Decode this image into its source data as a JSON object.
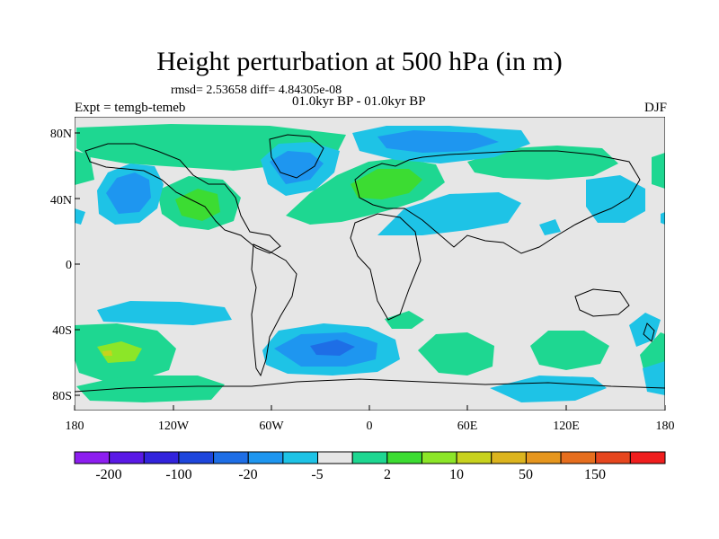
{
  "title": "Height perturbation at 500 hPa (in m)",
  "stats": "rmsd= 2.53658 diff= 4.84305e-08",
  "period": "01.0kyr BP - 01.0kyr BP",
  "experiment": "Expt = temgb-temeb",
  "season": "DJF",
  "axes": {
    "lat_labels": [
      "80N",
      "40N",
      "0",
      "40S",
      "80S"
    ],
    "lon_labels": [
      "180",
      "120W",
      "60W",
      "0",
      "60E",
      "120E",
      "180"
    ]
  },
  "colorbar": {
    "colors": [
      "#8d1ef0",
      "#5a19e6",
      "#3223dc",
      "#1e46dc",
      "#1e6ee6",
      "#1e96f0",
      "#1ec3e6",
      "#e6e6e6",
      "#1ed791",
      "#3cdc32",
      "#8ce628",
      "#c8d21e",
      "#dcb41e",
      "#e6961e",
      "#e66e1e",
      "#e6461e",
      "#f01e1e"
    ],
    "labels": [
      "-200",
      "-100",
      "-20",
      "-5",
      "2",
      "10",
      "50",
      "150"
    ]
  },
  "field_colors": {
    "background": "#e6e6e6",
    "neg1": "#1ec3e6",
    "neg2": "#1e96f0",
    "neg3": "#1e6ee6",
    "pos1": "#1ed791",
    "pos2": "#3cdc32",
    "pos3": "#8ce628",
    "pos4": "#c8d21e"
  }
}
